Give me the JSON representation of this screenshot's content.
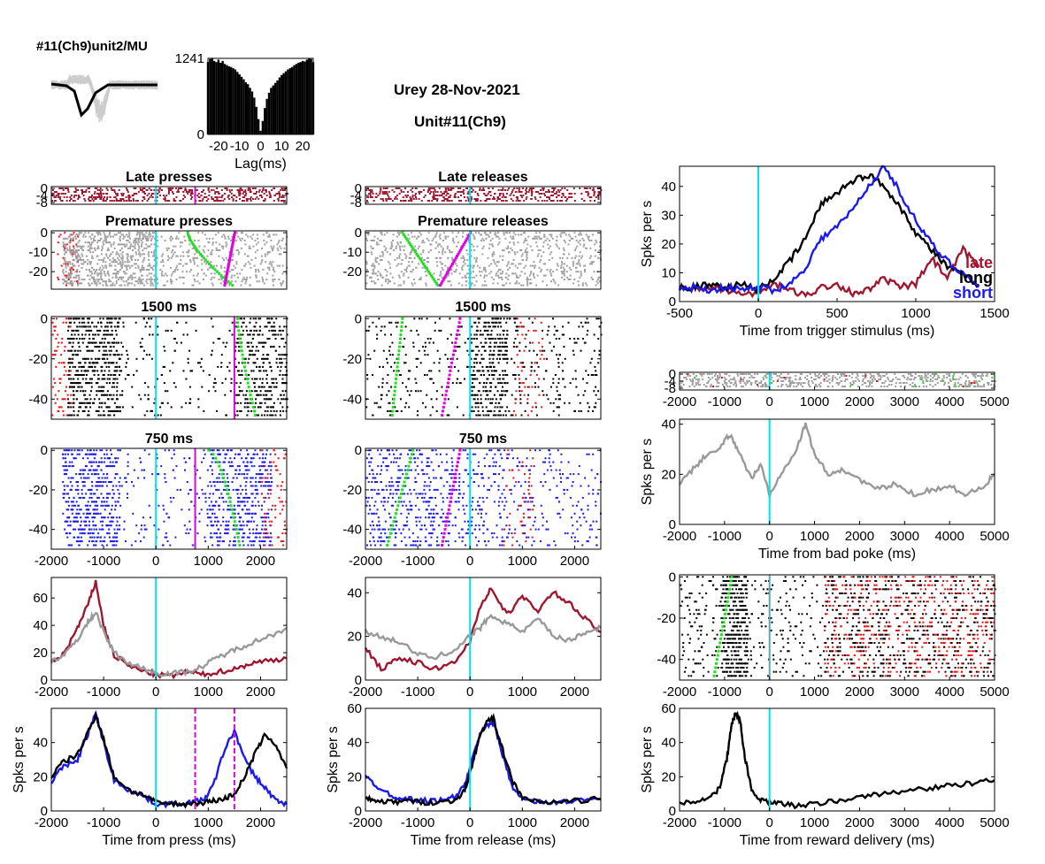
{
  "header": {
    "unit_label": "#11(Ch9)unit2/MU",
    "session": "Urey 28-Nov-2021",
    "unit": "Unit#11(Ch9)"
  },
  "colors": {
    "cyan": "#00e5ee",
    "magenta": "#e000e0",
    "green": "#22dd22",
    "red": "#ee1111",
    "gray": "#999999",
    "raster_gray": "#a0a0a0",
    "maroon": "#a01830",
    "blue": "#1a1aee",
    "black": "#000000"
  },
  "chart_data": [
    {
      "id": "acg",
      "type": "bar",
      "xlabel": "Lag(ms)",
      "xticks": [
        -20,
        -10,
        0,
        10,
        20
      ],
      "xlim": [
        -25,
        25
      ],
      "yticks": [
        0,
        1241
      ],
      "ylim": [
        0,
        1241
      ],
      "x": [
        -25,
        -24,
        -23,
        -22,
        -21,
        -20,
        -19,
        -18,
        -17,
        -16,
        -15,
        -14,
        -13,
        -12,
        -11,
        -10,
        -9,
        -8,
        -7,
        -6,
        -5,
        -4,
        -3,
        -2,
        -1,
        0,
        1,
        2,
        3,
        4,
        5,
        6,
        7,
        8,
        9,
        10,
        11,
        12,
        13,
        14,
        15,
        16,
        17,
        18,
        19,
        20,
        21,
        22,
        23,
        24,
        25
      ],
      "values": [
        1180,
        1230,
        1250,
        1200,
        1180,
        1220,
        1170,
        1200,
        1150,
        1130,
        1110,
        1100,
        1080,
        1060,
        1020,
        980,
        940,
        900,
        850,
        820,
        760,
        700,
        600,
        450,
        250,
        60,
        220,
        430,
        580,
        680,
        760,
        800,
        840,
        880,
        930,
        970,
        1000,
        1030,
        1060,
        1080,
        1100,
        1130,
        1150,
        1170,
        1180,
        1200,
        1190,
        1220,
        1240,
        1230,
        1180
      ]
    },
    {
      "id": "late_presses",
      "type": "scatter",
      "title": "Late presses",
      "yticks": [
        0,
        -4,
        -8
      ],
      "xlim": [
        -2000,
        2500
      ],
      "ylim": [
        -9,
        1
      ]
    },
    {
      "id": "premature_presses",
      "type": "scatter",
      "title": "Premature presses",
      "yticks": [
        0,
        -10,
        -20
      ],
      "xlim": [
        -2000,
        2500
      ],
      "ylim": [
        -29,
        1
      ]
    },
    {
      "id": "press_1500",
      "type": "scatter",
      "title": "1500 ms",
      "yticks": [
        0,
        -20,
        -40
      ],
      "xlim": [
        -2000,
        2500
      ],
      "ylim": [
        -50,
        1
      ]
    },
    {
      "id": "press_750",
      "type": "scatter",
      "title": "750 ms",
      "yticks": [
        0,
        -20,
        -40
      ],
      "xlim": [
        -2000,
        2500
      ],
      "ylim": [
        -50,
        1
      ],
      "xticks": [
        -2000,
        -1000,
        0,
        1000,
        2000
      ]
    },
    {
      "id": "press_psth_errors",
      "type": "line",
      "xlim": [
        -2000,
        2500
      ],
      "ylim": [
        0,
        75
      ],
      "yticks": [
        0,
        20,
        40,
        60
      ],
      "xticks": [
        -2000,
        -1000,
        0,
        1000,
        2000
      ],
      "x": [
        -2000,
        -1750,
        -1500,
        -1300,
        -1150,
        -1000,
        -800,
        -500,
        -200,
        0,
        300,
        600,
        900,
        1200,
        1500,
        1800,
        2100,
        2500
      ],
      "series": [
        {
          "color": "maroon",
          "values": [
            12,
            20,
            38,
            55,
            72,
            40,
            18,
            10,
            6,
            4,
            3,
            6,
            4,
            6,
            8,
            12,
            14,
            16
          ]
        },
        {
          "color": "gray",
          "values": [
            14,
            18,
            30,
            42,
            50,
            35,
            20,
            12,
            8,
            5,
            5,
            6,
            10,
            17,
            22,
            27,
            31,
            38
          ]
        }
      ]
    },
    {
      "id": "press_psth",
      "type": "line",
      "ylabel": "Spks per s",
      "xlabel": "Time from press (ms)",
      "xlim": [
        -2000,
        2500
      ],
      "ylim": [
        0,
        60
      ],
      "yticks": [
        0,
        20,
        40
      ],
      "xticks": [
        -2000,
        -1000,
        0,
        1000,
        2000
      ],
      "x": [
        -2000,
        -1800,
        -1500,
        -1300,
        -1150,
        -1000,
        -800,
        -500,
        -200,
        0,
        300,
        600,
        900,
        1100,
        1300,
        1500,
        1700,
        1900,
        2100,
        2300,
        2500
      ],
      "series": [
        {
          "color": "blue",
          "values": [
            17,
            25,
            30,
            45,
            57,
            40,
            18,
            12,
            8,
            4,
            4,
            5,
            6,
            15,
            35,
            47,
            30,
            20,
            13,
            6,
            4
          ]
        },
        {
          "color": "black",
          "values": [
            20,
            28,
            33,
            46,
            56,
            42,
            20,
            12,
            9,
            5,
            4,
            4,
            5,
            6,
            7,
            10,
            20,
            34,
            45,
            38,
            25
          ]
        }
      ]
    },
    {
      "id": "late_releases",
      "type": "scatter",
      "title": "Late releases",
      "yticks": [
        0,
        -4,
        -8
      ],
      "xlim": [
        -2000,
        2500
      ],
      "ylim": [
        -9,
        1
      ]
    },
    {
      "id": "premature_releases",
      "type": "scatter",
      "title": "Premature releases",
      "yticks": [
        0,
        -10,
        -20
      ],
      "xlim": [
        -2000,
        2500
      ],
      "ylim": [
        -29,
        1
      ]
    },
    {
      "id": "release_1500",
      "type": "scatter",
      "title": "1500 ms",
      "yticks": [
        0,
        -20,
        -40
      ],
      "xlim": [
        -2000,
        2500
      ],
      "ylim": [
        -50,
        1
      ]
    },
    {
      "id": "release_750",
      "type": "scatter",
      "title": "750 ms",
      "yticks": [
        0,
        -20,
        -40
      ],
      "xlim": [
        -2000,
        2500
      ],
      "ylim": [
        -50,
        1
      ],
      "xticks": [
        -2000,
        -1000,
        0,
        1000,
        2000
      ]
    },
    {
      "id": "release_psth_errors",
      "type": "line",
      "xlim": [
        -2000,
        2500
      ],
      "ylim": [
        0,
        47
      ],
      "yticks": [
        0,
        20,
        40
      ],
      "xticks": [
        -2000,
        -1000,
        0,
        1000,
        2000
      ],
      "x": [
        -2000,
        -1700,
        -1400,
        -1000,
        -700,
        -300,
        0,
        200,
        400,
        700,
        1000,
        1300,
        1600,
        1900,
        2200,
        2500
      ],
      "series": [
        {
          "color": "maroon",
          "values": [
            15,
            5,
            10,
            8,
            5,
            8,
            18,
            34,
            42,
            30,
            38,
            32,
            40,
            35,
            28,
            22
          ]
        },
        {
          "color": "gray",
          "values": [
            22,
            20,
            18,
            12,
            10,
            14,
            20,
            24,
            30,
            26,
            22,
            28,
            20,
            18,
            22,
            24
          ]
        }
      ]
    },
    {
      "id": "release_psth",
      "type": "line",
      "ylabel": "Spks per s",
      "xlabel": "Time from release (ms)",
      "xlim": [
        -2000,
        2500
      ],
      "ylim": [
        0,
        60
      ],
      "yticks": [
        0,
        20,
        40,
        60
      ],
      "xticks": [
        -2000,
        -1000,
        0,
        1000,
        2000
      ],
      "x": [
        -2000,
        -1800,
        -1500,
        -1200,
        -900,
        -600,
        -300,
        -100,
        0,
        150,
        300,
        450,
        600,
        800,
        1000,
        1300,
        1600,
        2000,
        2500
      ],
      "series": [
        {
          "color": "blue",
          "values": [
            20,
            15,
            9,
            7,
            6,
            6,
            8,
            15,
            25,
            42,
            50,
            52,
            35,
            15,
            7,
            5,
            5,
            6,
            7
          ]
        },
        {
          "color": "black",
          "values": [
            7,
            6,
            5,
            6,
            5,
            5,
            6,
            12,
            22,
            40,
            52,
            54,
            38,
            18,
            8,
            5,
            5,
            6,
            7
          ]
        }
      ]
    },
    {
      "id": "trigger_psth",
      "type": "line",
      "ylabel": "Spks per s",
      "xlabel": "Time from trigger stimulus (ms)",
      "xlim": [
        -500,
        1500
      ],
      "ylim": [
        0,
        47
      ],
      "yticks": [
        0,
        10,
        20,
        30,
        40
      ],
      "xticks": [
        -500,
        0,
        500,
        1000,
        1500
      ],
      "legend": [
        "late",
        "long",
        "short"
      ],
      "x": [
        -500,
        -400,
        -300,
        -200,
        -100,
        0,
        100,
        200,
        300,
        400,
        500,
        600,
        700,
        800,
        900,
        1000,
        1100,
        1200,
        1300,
        1400
      ],
      "series": [
        {
          "name": "late",
          "color": "maroon",
          "values": [
            5,
            4,
            5,
            4,
            3,
            3,
            6,
            4,
            2,
            5,
            6,
            3,
            4,
            8,
            5,
            6,
            15,
            8,
            18,
            12
          ]
        },
        {
          "name": "long",
          "color": "black",
          "values": [
            5,
            5,
            6,
            5,
            6,
            4,
            8,
            14,
            22,
            34,
            38,
            42,
            44,
            40,
            33,
            24,
            18,
            12,
            9,
            6
          ]
        },
        {
          "name": "short",
          "color": "blue",
          "values": [
            4,
            5,
            4,
            5,
            4,
            5,
            4,
            6,
            12,
            22,
            26,
            32,
            40,
            47,
            38,
            28,
            20,
            14,
            10,
            5
          ]
        }
      ]
    },
    {
      "id": "badpoke_raster",
      "type": "scatter",
      "yticks": [
        0,
        -4,
        -8
      ],
      "xlim": [
        -2000,
        5000
      ],
      "ylim": [
        -9,
        1
      ],
      "xticks": [
        -2000,
        -1000,
        0,
        1000,
        2000,
        3000,
        4000,
        5000
      ]
    },
    {
      "id": "badpoke_psth",
      "type": "line",
      "ylabel": "Spks per s",
      "xlabel": "Time from bad poke (ms)",
      "xlim": [
        -2000,
        5000
      ],
      "ylim": [
        0,
        42
      ],
      "yticks": [
        0,
        20,
        40
      ],
      "xticks": [
        -2000,
        -1000,
        0,
        1000,
        2000,
        3000,
        4000,
        5000
      ],
      "x": [
        -2000,
        -1700,
        -1400,
        -1100,
        -900,
        -700,
        -400,
        -200,
        0,
        300,
        600,
        800,
        1000,
        1300,
        1600,
        2000,
        2400,
        2800,
        3200,
        3600,
        4000,
        4400,
        4800,
        5000
      ],
      "series": [
        {
          "color": "gray",
          "values": [
            16,
            22,
            28,
            30,
            36,
            30,
            18,
            24,
            12,
            22,
            30,
            40,
            28,
            20,
            22,
            18,
            14,
            16,
            12,
            14,
            15,
            12,
            16,
            20
          ]
        }
      ]
    },
    {
      "id": "reward_raster",
      "type": "scatter",
      "yticks": [
        0,
        -20,
        -40
      ],
      "xlim": [
        -2000,
        5000
      ],
      "ylim": [
        -50,
        1
      ],
      "xticks": [
        -2000,
        -1000,
        0,
        1000,
        2000,
        3000,
        4000,
        5000
      ]
    },
    {
      "id": "reward_psth",
      "type": "line",
      "ylabel": "Spks per s",
      "xlabel": "Time from reward delivery (ms)",
      "xlim": [
        -2000,
        5000
      ],
      "ylim": [
        0,
        60
      ],
      "yticks": [
        0,
        20,
        40,
        60
      ],
      "xticks": [
        -2000,
        -1000,
        0,
        1000,
        2000,
        3000,
        4000,
        5000
      ],
      "x": [
        -2000,
        -1600,
        -1300,
        -1100,
        -950,
        -850,
        -750,
        -650,
        -550,
        -400,
        -200,
        0,
        300,
        600,
        1000,
        1500,
        2000,
        2500,
        3000,
        3500,
        4000,
        4500,
        5000
      ],
      "series": [
        {
          "color": "black",
          "values": [
            5,
            6,
            8,
            14,
            30,
            50,
            58,
            52,
            32,
            12,
            6,
            5,
            4,
            3,
            4,
            6,
            8,
            10,
            12,
            13,
            15,
            16,
            18
          ]
        }
      ]
    }
  ]
}
